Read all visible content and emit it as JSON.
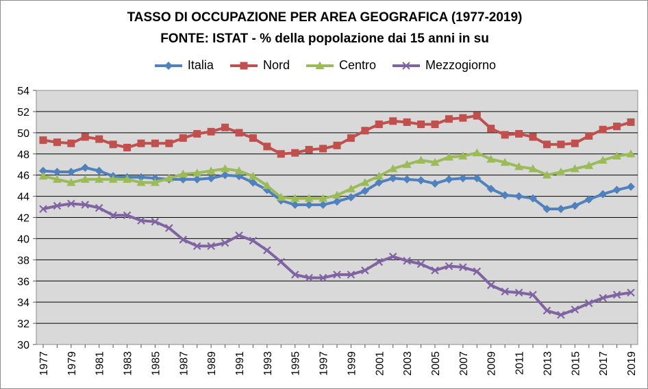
{
  "chart_data": {
    "type": "line",
    "title": "TASSO DI OCCUPAZIONE PER AREA GEOGRAFICA (1977-2019)",
    "subtitle": "FONTE: ISTAT - % della popolazione dai 15 anni in su",
    "xlabel": "",
    "ylabel": "",
    "ylim": [
      30,
      54
    ],
    "yticks": [
      30,
      32,
      34,
      36,
      38,
      40,
      42,
      44,
      46,
      48,
      50,
      52,
      54
    ],
    "grid": true,
    "legend": "top",
    "x": [
      1977,
      1978,
      1979,
      1980,
      1981,
      1982,
      1983,
      1984,
      1985,
      1986,
      1987,
      1988,
      1989,
      1990,
      1991,
      1992,
      1993,
      1994,
      1995,
      1996,
      1997,
      1998,
      1999,
      2000,
      2001,
      2002,
      2003,
      2004,
      2005,
      2006,
      2007,
      2008,
      2009,
      2010,
      2011,
      2012,
      2013,
      2014,
      2015,
      2016,
      2017,
      2018,
      2019
    ],
    "xticks": [
      "1977",
      "1979",
      "1981",
      "1983",
      "1985",
      "1987",
      "1989",
      "1991",
      "1993",
      "1995",
      "1997",
      "1999",
      "2001",
      "2003",
      "2005",
      "2007",
      "2009",
      "2011",
      "2013",
      "2015",
      "2017",
      "2019"
    ],
    "series": [
      {
        "name": "Italia",
        "color": "#4F81BD",
        "marker": "diamond",
        "values": [
          46.4,
          46.3,
          46.3,
          46.7,
          46.4,
          45.9,
          45.8,
          45.8,
          45.7,
          45.6,
          45.6,
          45.6,
          45.7,
          46.0,
          45.9,
          45.3,
          44.6,
          43.6,
          43.2,
          43.2,
          43.2,
          43.5,
          43.9,
          44.5,
          45.3,
          45.7,
          45.6,
          45.5,
          45.2,
          45.6,
          45.7,
          45.7,
          44.7,
          44.1,
          44.0,
          43.8,
          42.8,
          42.8,
          43.1,
          43.7,
          44.2,
          44.6,
          44.9
        ]
      },
      {
        "name": "Nord",
        "color": "#C0504D",
        "marker": "square",
        "values": [
          49.3,
          49.1,
          49.0,
          49.6,
          49.4,
          48.9,
          48.6,
          49.0,
          49.0,
          49.0,
          49.5,
          49.9,
          50.1,
          50.5,
          50.0,
          49.5,
          48.7,
          48.0,
          48.1,
          48.4,
          48.5,
          48.8,
          49.5,
          50.2,
          50.8,
          51.1,
          51.0,
          50.8,
          50.8,
          51.3,
          51.4,
          51.6,
          50.4,
          49.8,
          49.9,
          49.6,
          48.9,
          48.9,
          49.0,
          49.7,
          50.3,
          50.6,
          51.0
        ]
      },
      {
        "name": "Centro",
        "color": "#9BBB59",
        "marker": "triangle",
        "values": [
          45.9,
          45.6,
          45.3,
          45.6,
          45.6,
          45.6,
          45.6,
          45.3,
          45.3,
          45.7,
          46.1,
          46.2,
          46.4,
          46.6,
          46.4,
          45.9,
          45.0,
          43.9,
          43.8,
          43.8,
          43.8,
          44.1,
          44.7,
          45.3,
          45.9,
          46.6,
          47.0,
          47.4,
          47.2,
          47.7,
          47.8,
          48.1,
          47.5,
          47.2,
          46.8,
          46.6,
          46.0,
          46.3,
          46.6,
          46.9,
          47.4,
          47.8,
          48.0
        ]
      },
      {
        "name": "Mezzogiorno",
        "color": "#8064A2",
        "marker": "x",
        "values": [
          42.8,
          43.1,
          43.3,
          43.2,
          42.9,
          42.2,
          42.2,
          41.7,
          41.6,
          41.0,
          39.9,
          39.3,
          39.3,
          39.6,
          40.3,
          39.8,
          38.9,
          37.8,
          36.6,
          36.3,
          36.3,
          36.6,
          36.6,
          37.0,
          37.8,
          38.3,
          37.9,
          37.6,
          37.0,
          37.4,
          37.3,
          36.9,
          35.6,
          35.0,
          34.9,
          34.7,
          33.2,
          32.8,
          33.3,
          33.9,
          34.4,
          34.7,
          34.9
        ]
      }
    ]
  }
}
